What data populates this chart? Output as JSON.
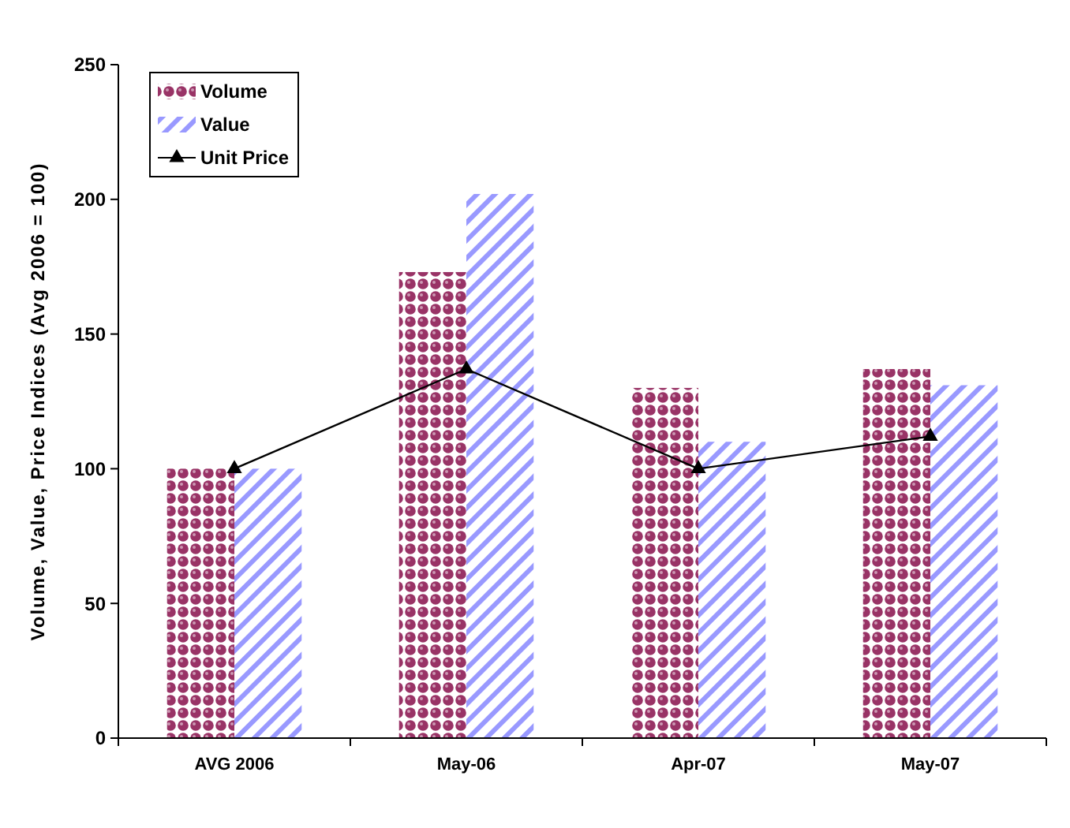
{
  "chart_data": {
    "type": "bar",
    "ylabel": "Volume, Value, Price Indices (Avg 2006 = 100)",
    "categories": [
      "AVG 2006",
      "May-06",
      "Apr-07",
      "May-07"
    ],
    "series": [
      {
        "name": "Volume",
        "color": "#993366",
        "values": [
          100,
          173,
          130,
          137
        ]
      },
      {
        "name": "Value",
        "color": "#9999ff",
        "values": [
          100,
          202,
          110,
          131
        ]
      },
      {
        "name": "Unit Price",
        "type": "line",
        "color": "#000000",
        "values": [
          100,
          137,
          100,
          112
        ]
      }
    ],
    "ylim": [
      0,
      250
    ],
    "yticks": [
      0,
      50,
      100,
      150,
      200,
      250
    ],
    "grid": false,
    "legend": "top left",
    "marker": "triangle",
    "line_style": "solid"
  }
}
